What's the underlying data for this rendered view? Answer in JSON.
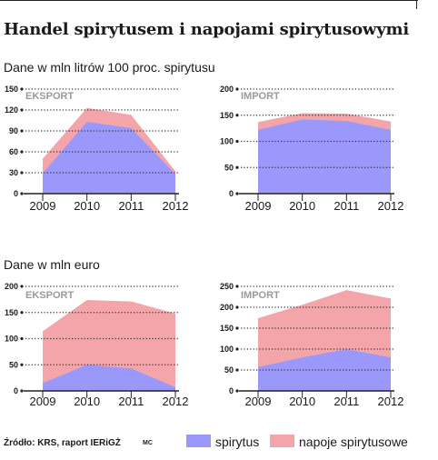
{
  "title": "Handel spirytusem i napojami spirytusowymi",
  "sections": {
    "volume": "Dane w mln litrów 100 proc. spirytusu",
    "value": "Dane w mln euro"
  },
  "footer": {
    "source": "Źródło: KRS, raport IERiGŻ",
    "credit": "MC"
  },
  "legend": {
    "spirit": "spirytus",
    "beverages": "napoje spirytusowe"
  },
  "colors": {
    "spirit": "#9b98fc",
    "beverages": "#f4a5aa"
  },
  "chart_data": [
    {
      "type": "area",
      "panel_label": "EKSPORT",
      "unit": "Dane w mln litrów 100 proc. spirytusu",
      "categories": [
        "2009",
        "2010",
        "2011",
        "2012"
      ],
      "ylim": [
        0,
        150
      ],
      "yticks": [
        0,
        30,
        60,
        90,
        120,
        150
      ],
      "grid": true,
      "series": [
        {
          "name": "spirytus",
          "values": [
            29,
            103,
            94,
            28
          ]
        },
        {
          "name": "napoje spirytusowe",
          "values": [
            50,
            123,
            113,
            32
          ],
          "cumulative": true
        }
      ]
    },
    {
      "type": "area",
      "panel_label": "IMPORT",
      "unit": "Dane w mln litrów 100 proc. spirytusu",
      "categories": [
        "2009",
        "2010",
        "2011",
        "2012"
      ],
      "ylim": [
        0,
        200
      ],
      "yticks": [
        0,
        50,
        100,
        150,
        200
      ],
      "grid": true,
      "series": [
        {
          "name": "spirytus",
          "values": [
            122,
            142,
            139,
            122
          ]
        },
        {
          "name": "napoje spirytusowe",
          "values": [
            137,
            154,
            153,
            138
          ],
          "cumulative": true
        }
      ]
    },
    {
      "type": "area",
      "panel_label": "EKSPORT",
      "unit": "Dane w mln euro",
      "categories": [
        "2009",
        "2010",
        "2011",
        "2012"
      ],
      "ylim": [
        0,
        200
      ],
      "yticks": [
        0,
        50,
        100,
        150,
        200
      ],
      "grid": true,
      "series": [
        {
          "name": "spirytus",
          "values": [
            15,
            50,
            43,
            7
          ]
        },
        {
          "name": "napoje spirytusowe",
          "values": [
            114,
            174,
            171,
            148
          ],
          "cumulative": true
        }
      ]
    },
    {
      "type": "area",
      "panel_label": "IMPORT",
      "unit": "Dane w mln euro",
      "categories": [
        "2009",
        "2010",
        "2011",
        "2012"
      ],
      "ylim": [
        0,
        250
      ],
      "yticks": [
        0,
        50,
        100,
        150,
        200,
        250
      ],
      "grid": true,
      "series": [
        {
          "name": "spirytus",
          "values": [
            57,
            80,
            100,
            80
          ]
        },
        {
          "name": "napoje spirytusowe",
          "values": [
            174,
            206,
            241,
            221
          ],
          "cumulative": true
        }
      ]
    }
  ]
}
